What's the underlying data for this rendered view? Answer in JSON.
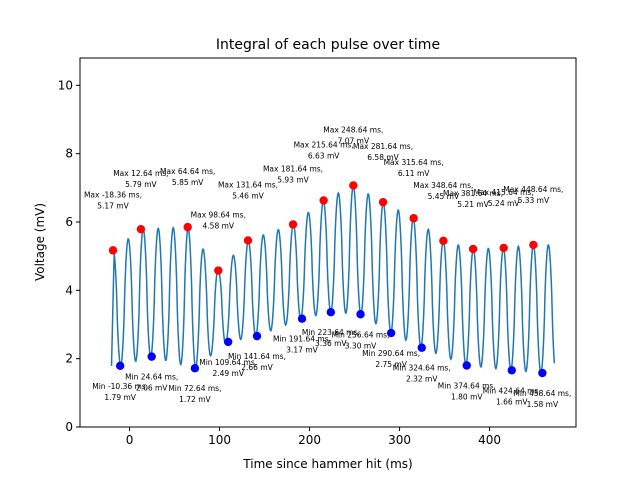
{
  "chart_data": {
    "type": "line",
    "title": "Integral of each pulse over time",
    "xlabel": "Time since hammer hit (ms)",
    "ylabel": "Voltage (mV)",
    "xlim": [
      -55,
      496
    ],
    "ylim": [
      0,
      10.8
    ],
    "xticks": [
      0,
      100,
      200,
      300,
      400
    ],
    "yticks": [
      0,
      2,
      4,
      6,
      8,
      10
    ],
    "grid": false,
    "line_color": "#1f77b4",
    "max_color": "#ff0000",
    "min_color": "#0000ff",
    "signal": {
      "start_ms": -20,
      "end_ms": 472,
      "period_ms": 16.67,
      "note_peaks_from": "max_points",
      "note_troughs_from": "min_points"
    },
    "max_points": [
      {
        "x": -18.36,
        "y": 5.17,
        "label": "Max -18.36 ms,\n5.17 mV"
      },
      {
        "x": 12.64,
        "y": 5.79,
        "label": "Max 12.64 ms,\n5.79 mV"
      },
      {
        "x": 64.64,
        "y": 5.85,
        "label": "Max 64.64 ms,\n5.85 mV"
      },
      {
        "x": 98.64,
        "y": 4.58,
        "label": "Max 98.64 ms,\n4.58 mV"
      },
      {
        "x": 131.64,
        "y": 5.46,
        "label": "Max 131.64 ms,\n5.46 mV"
      },
      {
        "x": 181.64,
        "y": 5.93,
        "label": "Max 181.64 ms,\n5.93 mV"
      },
      {
        "x": 215.64,
        "y": 6.63,
        "label": "Max 215.64 ms,\n6.63 mV"
      },
      {
        "x": 248.64,
        "y": 7.07,
        "label": "Max 248.64 ms,\n7.07 mV"
      },
      {
        "x": 281.64,
        "y": 6.58,
        "label": "Max 281.64 ms,\n6.58 mV"
      },
      {
        "x": 315.64,
        "y": 6.11,
        "label": "Max 315.64 ms,\n6.11 mV"
      },
      {
        "x": 348.64,
        "y": 5.45,
        "label": "Max 348.64 ms,\n5.45 mV"
      },
      {
        "x": 381.64,
        "y": 5.21,
        "label": "Max 381.64 ms,\n5.21 mV"
      },
      {
        "x": 415.64,
        "y": 5.24,
        "label": "Max 415.64 ms,\n5.24 mV"
      },
      {
        "x": 448.64,
        "y": 5.33,
        "label": "Max 448.64 ms,\n5.33 mV"
      }
    ],
    "min_points": [
      {
        "x": -10.36,
        "y": 1.79,
        "label": "Min -10.36 ms,\n1.79 mV"
      },
      {
        "x": 24.64,
        "y": 2.06,
        "label": "Min 24.64 ms,\n2.06 mV"
      },
      {
        "x": 72.64,
        "y": 1.72,
        "label": "Min 72.64 ms,\n1.72 mV"
      },
      {
        "x": 109.64,
        "y": 2.49,
        "label": "Min 109.64 ms,\n2.49 mV"
      },
      {
        "x": 141.64,
        "y": 2.66,
        "label": "Min 141.64 ms,\n2.66 mV"
      },
      {
        "x": 191.64,
        "y": 3.17,
        "label": "Min 191.64 ms,\n3.17 mV"
      },
      {
        "x": 223.64,
        "y": 3.36,
        "label": "Min 223.64 ms,\n3.36 mV"
      },
      {
        "x": 256.64,
        "y": 3.3,
        "label": "Min 256.64 ms,\n3.30 mV"
      },
      {
        "x": 290.64,
        "y": 2.75,
        "label": "Min 290.64 ms,\n2.75 mV"
      },
      {
        "x": 324.64,
        "y": 2.32,
        "label": "Min 324.64 ms,\n2.32 mV"
      },
      {
        "x": 374.64,
        "y": 1.8,
        "label": "Min 374.64 ms,\n1.80 mV"
      },
      {
        "x": 424.64,
        "y": 1.66,
        "label": "Min 424.64 ms,\n1.66 mV"
      },
      {
        "x": 458.64,
        "y": 1.58,
        "label": "Min 458.64 ms,\n1.58 mV"
      }
    ]
  }
}
